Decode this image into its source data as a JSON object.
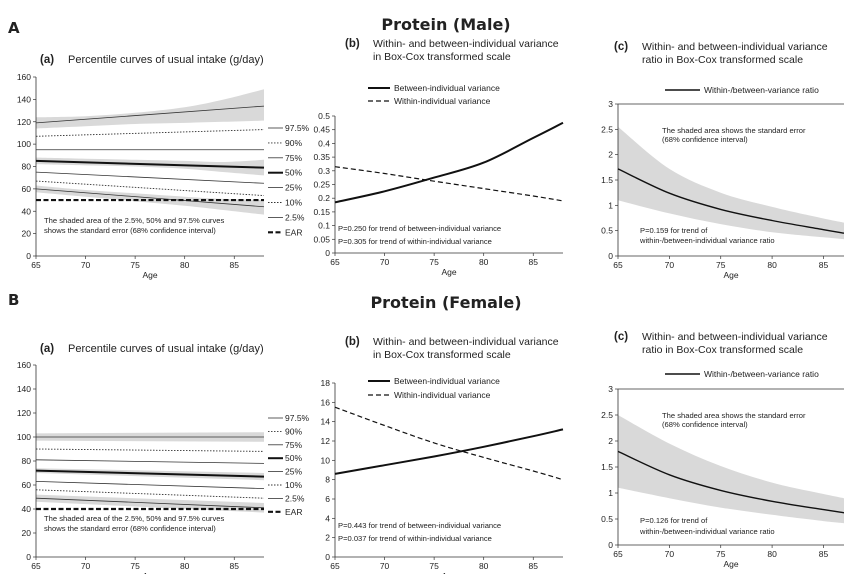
{
  "sections": [
    {
      "letter": "A",
      "title": "Protein (Male)",
      "charts": [
        {
          "panel": "(a)",
          "title_lines": [
            "Percentile curves of usual intake (g/day)"
          ],
          "type": "line",
          "xlabel": "Age",
          "xlim": [
            65,
            88
          ],
          "xticks": [
            65,
            70,
            75,
            80,
            85
          ],
          "ylim": [
            0,
            160
          ],
          "yticks": [
            0,
            20,
            40,
            60,
            80,
            100,
            120,
            140,
            160
          ],
          "x": [
            65,
            88
          ],
          "series": [
            {
              "name": "97.5%",
              "values": [
                119,
                134
              ],
              "style": "thin-solid"
            },
            {
              "name": "90%",
              "values": [
                107,
                113
              ],
              "style": "dotted"
            },
            {
              "name": "75%",
              "values": [
                95,
                95
              ],
              "style": "thin-solid"
            },
            {
              "name": "50%",
              "values": [
                85,
                79
              ],
              "style": "bold"
            },
            {
              "name": "25%",
              "values": [
                75,
                65
              ],
              "style": "thin-solid"
            },
            {
              "name": "10%",
              "values": [
                67,
                54
              ],
              "style": "dotted"
            },
            {
              "name": "2.5%",
              "values": [
                60,
                44
              ],
              "style": "thin-solid"
            },
            {
              "name": "EAR",
              "values": [
                50,
                50
              ],
              "style": "bold-dashed"
            }
          ],
          "bands": [
            {
              "x": [
                65,
                70,
                75,
                80,
                84,
                88
              ],
              "lo": [
                114,
                116,
                118,
                119,
                120,
                121
              ],
              "hi": [
                124,
                125,
                128,
                133,
                140,
                149
              ]
            },
            {
              "x": [
                65,
                70,
                75,
                80,
                84,
                88
              ],
              "lo": [
                82,
                81,
                80,
                78,
                75,
                72
              ],
              "hi": [
                88,
                87,
                86,
                85,
                84,
                86
              ]
            },
            {
              "x": [
                65,
                70,
                75,
                80,
                84,
                88
              ],
              "lo": [
                57,
                53,
                49,
                45,
                41,
                37
              ],
              "hi": [
                63,
                59,
                56,
                53,
                51,
                50
              ]
            }
          ],
          "legend_position": "right",
          "annotations": [
            "The shaded area of the 2.5%, 50% and 97.5% curves",
            "shows the standard error (68% confidence interval)"
          ]
        },
        {
          "panel": "(b)",
          "title_lines": [
            "Within- and between-individual variance",
            "in Box-Cox transformed scale"
          ],
          "type": "line",
          "xlabel": "Age",
          "xlim": [
            65,
            88
          ],
          "xticks": [
            65,
            70,
            75,
            80,
            85
          ],
          "ylim": [
            0,
            0.5
          ],
          "yticks": [
            0,
            0.05,
            0.1,
            0.15,
            0.2,
            0.25,
            0.3,
            0.35,
            0.4,
            0.45,
            0.5
          ],
          "ytick_labels": [
            "0",
            "0.05",
            "0.1",
            "0.15",
            "0.2",
            "0.25",
            "0.3",
            "0.35",
            "0.4",
            "0.45",
            "0.5"
          ],
          "x": [
            65,
            70,
            75,
            80,
            85,
            88
          ],
          "series": [
            {
              "name": "Between-individual variance",
              "values": [
                0.185,
                0.225,
                0.275,
                0.33,
                0.42,
                0.475
              ],
              "style": "bold"
            },
            {
              "name": "Within-individual variance",
              "values": [
                0.315,
                0.29,
                0.262,
                0.235,
                0.208,
                0.19
              ],
              "style": "dashed"
            }
          ],
          "legend_position": "top-left",
          "annotations": [
            "P=0.250 for trend of between-individual variance",
            "P=0.305 for trend of within-individual variance"
          ]
        },
        {
          "panel": "(c)",
          "title_lines": [
            "Within- and between-individual variance",
            "ratio in Box-Cox transformed scale"
          ],
          "type": "line",
          "xlabel": "Age",
          "xlim": [
            65,
            87
          ],
          "xticks": [
            65,
            70,
            75,
            80,
            85
          ],
          "ylim": [
            0,
            3
          ],
          "yticks": [
            0,
            0.5,
            1,
            1.5,
            2,
            2.5,
            3
          ],
          "ytick_labels": [
            "0",
            "0.5",
            "1",
            "1.5",
            "2",
            "2.5",
            "3"
          ],
          "x": [
            65,
            70,
            75,
            80,
            85,
            87
          ],
          "series": [
            {
              "name": "Within-/between-variance ratio",
              "values": [
                1.72,
                1.24,
                0.92,
                0.7,
                0.52,
                0.45
              ],
              "style": "solid"
            }
          ],
          "bands": [
            {
              "x": [
                65,
                70,
                75,
                80,
                85,
                87
              ],
              "lo": [
                1.1,
                0.84,
                0.63,
                0.47,
                0.37,
                0.33
              ],
              "hi": [
                2.55,
                1.72,
                1.25,
                0.97,
                0.74,
                0.66
              ]
            }
          ],
          "legend_position": "top",
          "annotations": [
            "The shaded area shows the standard error",
            "(68% confidence interval)",
            "P=0.159 for trend of",
            "within-/between-individual variance ratio"
          ]
        }
      ]
    },
    {
      "letter": "B",
      "title": "Protein (Female)",
      "charts": [
        {
          "panel": "(a)",
          "title_lines": [
            "Percentile curves of usual intake (g/day)"
          ],
          "type": "line",
          "xlabel": "Age",
          "xlim": [
            65,
            88
          ],
          "xticks": [
            65,
            70,
            75,
            80,
            85
          ],
          "ylim": [
            0,
            160
          ],
          "yticks": [
            0,
            20,
            40,
            60,
            80,
            100,
            120,
            140,
            160
          ],
          "x": [
            65,
            88
          ],
          "series": [
            {
              "name": "97.5%",
              "values": [
                100,
                100
              ],
              "style": "thin-solid"
            },
            {
              "name": "90%",
              "values": [
                90,
                88
              ],
              "style": "dotted"
            },
            {
              "name": "75%",
              "values": [
                81,
                78
              ],
              "style": "thin-solid"
            },
            {
              "name": "50%",
              "values": [
                72,
                67
              ],
              "style": "bold"
            },
            {
              "name": "25%",
              "values": [
                63,
                57
              ],
              "style": "thin-solid"
            },
            {
              "name": "10%",
              "values": [
                56,
                49
              ],
              "style": "dotted"
            },
            {
              "name": "2.5%",
              "values": [
                49,
                41
              ],
              "style": "thin-solid"
            },
            {
              "name": "EAR",
              "values": [
                40,
                40
              ],
              "style": "bold-dashed"
            }
          ],
          "bands": [
            {
              "x": [
                65,
                88
              ],
              "lo": [
                97,
                96
              ],
              "hi": [
                103,
                104
              ]
            },
            {
              "x": [
                65,
                88
              ],
              "lo": [
                70,
                64
              ],
              "hi": [
                74,
                70
              ]
            },
            {
              "x": [
                65,
                88
              ],
              "lo": [
                46,
                37
              ],
              "hi": [
                52,
                45
              ]
            }
          ],
          "legend_position": "right",
          "annotations": [
            "The shaded area of the 2.5%, 50% and 97.5% curves",
            "shows the standard error (68% confidence interval)"
          ]
        },
        {
          "panel": "(b)",
          "title_lines": [
            "Within- and between-individual variance",
            "in Box-Cox transformed scale"
          ],
          "type": "line",
          "xlabel": "Age",
          "xlim": [
            65,
            88
          ],
          "xticks": [
            65,
            70,
            75,
            80,
            85
          ],
          "ylim": [
            0,
            18
          ],
          "yticks": [
            0,
            2,
            4,
            6,
            8,
            10,
            12,
            14,
            16,
            18
          ],
          "x": [
            65,
            70,
            75,
            80,
            85,
            88
          ],
          "series": [
            {
              "name": "Between-individual variance",
              "values": [
                8.6,
                9.5,
                10.4,
                11.4,
                12.5,
                13.2
              ],
              "style": "bold"
            },
            {
              "name": "Within-individual variance",
              "values": [
                15.5,
                13.6,
                11.8,
                10.3,
                8.9,
                8.0
              ],
              "style": "dashed"
            }
          ],
          "legend_position": "top-left",
          "annotations": [
            "P=0.443 for trend of between-individual variance",
            "P=0.037 for trend of within-individual variance"
          ]
        },
        {
          "panel": "(c)",
          "title_lines": [
            "Within- and between-individual variance",
            "ratio in Box-Cox transformed scale"
          ],
          "type": "line",
          "xlabel": "Age",
          "xlim": [
            65,
            87
          ],
          "xticks": [
            65,
            70,
            75,
            80,
            85
          ],
          "ylim": [
            0,
            3
          ],
          "yticks": [
            0,
            0.5,
            1,
            1.5,
            2,
            2.5,
            3
          ],
          "ytick_labels": [
            "0",
            "0.5",
            "1",
            "1.5",
            "2",
            "2.5",
            "3"
          ],
          "x": [
            65,
            70,
            75,
            80,
            85,
            87
          ],
          "series": [
            {
              "name": "Within-/between-variance ratio",
              "values": [
                1.8,
                1.35,
                1.05,
                0.84,
                0.68,
                0.62
              ],
              "style": "solid"
            }
          ],
          "bands": [
            {
              "x": [
                65,
                70,
                75,
                80,
                85,
                87
              ],
              "lo": [
                1.1,
                0.9,
                0.72,
                0.58,
                0.46,
                0.42
              ],
              "hi": [
                2.5,
                1.95,
                1.52,
                1.2,
                0.98,
                0.9
              ]
            }
          ],
          "legend_position": "top",
          "annotations": [
            "The shaded area shows the standard error",
            "(68% confidence interval)",
            "P=0.126 for trend of",
            "within-/between-individual variance ratio"
          ]
        }
      ]
    }
  ]
}
